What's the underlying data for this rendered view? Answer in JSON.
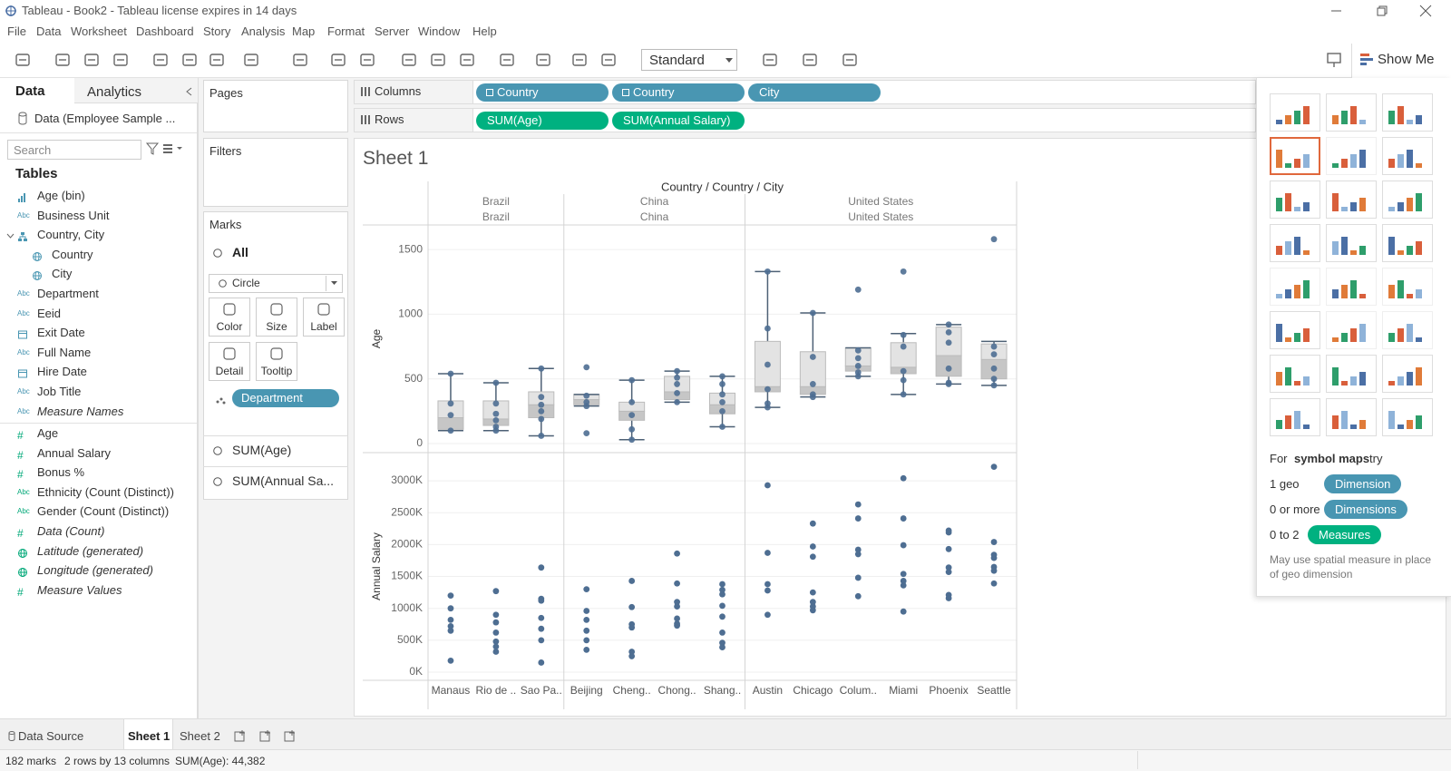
{
  "window": {
    "title": "Tableau - Book2 - Tableau license expires in 14 days"
  },
  "menu": [
    "File",
    "Data",
    "Worksheet",
    "Dashboard",
    "Story",
    "Analysis",
    "Map",
    "Format",
    "Server",
    "Window",
    "Help"
  ],
  "toolbar": {
    "fit": "Standard",
    "show_me": "Show Me"
  },
  "data_pane": {
    "tabs": [
      "Data",
      "Analytics"
    ],
    "source": "Data (Employee Sample ...",
    "search": "Search",
    "tables_title": "Tables",
    "dimensions": [
      {
        "name": "Age (bin)",
        "glyph": "bin"
      },
      {
        "name": "Business Unit",
        "icon": "Abc"
      },
      {
        "name": "Country, City",
        "glyph": "hierarchy",
        "children": [
          {
            "name": "Country",
            "glyph": "geo"
          },
          {
            "name": "City",
            "glyph": "geo"
          }
        ]
      },
      {
        "name": "Department",
        "icon": "Abc"
      },
      {
        "name": "Eeid",
        "icon": "Abc"
      },
      {
        "name": "Exit Date",
        "glyph": "date"
      },
      {
        "name": "Full Name",
        "icon": "Abc"
      },
      {
        "name": "Hire Date",
        "glyph": "date"
      },
      {
        "name": "Job Title",
        "icon": "Abc"
      },
      {
        "name": "Measure Names",
        "icon": "Abc",
        "italic": true
      }
    ],
    "measures": [
      {
        "name": "Age",
        "icon": "#"
      },
      {
        "name": "Annual Salary",
        "icon": "#"
      },
      {
        "name": "Bonus %",
        "icon": "#"
      },
      {
        "name": "Ethnicity (Count (Distinct))",
        "icon": "Abc"
      },
      {
        "name": "Gender (Count (Distinct))",
        "icon": "Abc"
      },
      {
        "name": "Data (Count)",
        "icon": "#",
        "italic": true
      },
      {
        "name": "Latitude (generated)",
        "glyph": "geo",
        "italic": true
      },
      {
        "name": "Longitude (generated)",
        "glyph": "geo",
        "italic": true
      },
      {
        "name": "Measure Values",
        "icon": "#",
        "italic": true
      }
    ]
  },
  "cards": {
    "pages": "Pages",
    "filters": "Filters"
  },
  "marks": {
    "title": "Marks",
    "all": "All",
    "mark_type": "Circle",
    "buttons": [
      "Color",
      "Size",
      "Label",
      "Detail",
      "Tooltip"
    ],
    "pill": "Department",
    "measures": [
      "SUM(Age)",
      "SUM(Annual Sa..."
    ]
  },
  "shelves": {
    "columns_label": "Columns",
    "columns": [
      "Country",
      "Country",
      "City"
    ],
    "rows_label": "Rows",
    "rows": [
      "SUM(Age)",
      "SUM(Annual Salary)"
    ]
  },
  "sheet_title": "Sheet 1",
  "chart_data": {
    "type": "box-scatter",
    "header": "Country / Country / City",
    "grid": true,
    "point_color": "#4e6e92",
    "age_axis": {
      "label": "Age",
      "ylim": [
        -70,
        1690
      ],
      "yticks": [
        0,
        500,
        1000,
        1500
      ]
    },
    "salary_axis": {
      "label": "Annual Salary",
      "ylim": [
        -128000,
        3442000
      ],
      "yticks": [
        {
          "value": 0,
          "label": "0K"
        },
        {
          "value": 500000,
          "label": "500K"
        },
        {
          "value": 1000000,
          "label": "1000K"
        },
        {
          "value": 1500000,
          "label": "1500K"
        },
        {
          "value": 2000000,
          "label": "2000K"
        },
        {
          "value": 2500000,
          "label": "2500K"
        },
        {
          "value": 3000000,
          "label": "3000K"
        }
      ]
    },
    "panes": [
      {
        "country": "Brazil",
        "country_level2": "Brazil",
        "cities": [
          "Manaus",
          "Rio de ..",
          "Sao Pa.."
        ],
        "age": [
          [
            540,
            310,
            220,
            100
          ],
          [
            470,
            310,
            230,
            180,
            130,
            100
          ],
          [
            580,
            360,
            300,
            250,
            190,
            60
          ]
        ],
        "age_box": [
          [
            100,
            110,
            200,
            330,
            540
          ],
          [
            100,
            140,
            190,
            330,
            470
          ],
          [
            60,
            200,
            300,
            400,
            580
          ]
        ],
        "salary": [
          [
            1200000,
            1000000,
            820000,
            720000,
            650000,
            180000
          ],
          [
            1270000,
            900000,
            780000,
            620000,
            480000,
            400000,
            320000
          ],
          [
            1640000,
            1150000,
            1120000,
            850000,
            680000,
            500000,
            150000
          ]
        ]
      },
      {
        "country": "China",
        "country_level2": "China",
        "cities": [
          "Beijing",
          "Cheng..",
          "Chong..",
          "Shang.."
        ],
        "age": [
          [
            590,
            370,
            320,
            290,
            80
          ],
          [
            490,
            320,
            220,
            110,
            30
          ],
          [
            560,
            510,
            460,
            390,
            320
          ],
          [
            520,
            460,
            380,
            320,
            250,
            130
          ]
        ],
        "age_box": [
          [
            290,
            300,
            340,
            380,
            380
          ],
          [
            30,
            180,
            250,
            320,
            490
          ],
          [
            320,
            340,
            400,
            520,
            560
          ],
          [
            130,
            230,
            300,
            390,
            520
          ]
        ],
        "salary": [
          [
            1300000,
            960000,
            820000,
            650000,
            500000,
            350000
          ],
          [
            1430000,
            1020000,
            750000,
            700000,
            320000,
            250000
          ],
          [
            1860000,
            1390000,
            1100000,
            1030000,
            840000,
            760000,
            730000
          ],
          [
            1380000,
            1290000,
            1220000,
            1040000,
            870000,
            620000,
            460000,
            390000
          ]
        ]
      },
      {
        "country": "United States",
        "country_level2": "United States",
        "cities": [
          "Austin",
          "Chicago",
          "Colum..",
          "Miami",
          "Phoenix",
          "Seattle"
        ],
        "age": [
          [
            1330,
            890,
            610,
            420,
            310,
            280
          ],
          [
            1010,
            670,
            460,
            380,
            360
          ],
          [
            1190,
            720,
            660,
            600,
            550,
            520
          ],
          [
            1330,
            840,
            750,
            560,
            490,
            380
          ],
          [
            920,
            860,
            780,
            580,
            470,
            460
          ],
          [
            1580,
            750,
            690,
            580,
            500,
            450
          ]
        ],
        "age_box": [
          [
            280,
            400,
            440,
            790,
            1330
          ],
          [
            360,
            380,
            440,
            710,
            1010
          ],
          [
            520,
            560,
            600,
            740,
            740
          ],
          [
            380,
            540,
            590,
            780,
            850
          ],
          [
            460,
            520,
            680,
            900,
            920
          ],
          [
            450,
            500,
            650,
            770,
            790
          ]
        ],
        "salary": [
          [
            2930000,
            1870000,
            1380000,
            1280000,
            900000
          ],
          [
            2330000,
            1970000,
            1810000,
            1250000,
            1100000,
            1030000,
            970000
          ],
          [
            2630000,
            2410000,
            1920000,
            1850000,
            1480000,
            1190000
          ],
          [
            3040000,
            2410000,
            1990000,
            1540000,
            1430000,
            1360000,
            950000
          ],
          [
            2220000,
            2190000,
            1930000,
            1640000,
            1570000,
            1210000,
            1160000
          ],
          [
            3220000,
            2040000,
            1840000,
            1790000,
            1650000,
            1590000,
            1390000
          ]
        ]
      }
    ]
  },
  "show_me": {
    "hint_prefix": "For",
    "hint_bold": "symbol maps",
    "hint_suffix": "try",
    "requirements": [
      {
        "label": "1 geo",
        "pill": "Dimension"
      },
      {
        "label": "0 or more",
        "pill": "Dimensions"
      },
      {
        "label": "0 to 2",
        "pill": "Measures"
      }
    ],
    "note": "May use spatial measure in place of geo dimension"
  },
  "sheet_tabs": [
    "Data Source",
    "Sheet 1",
    "Sheet 2"
  ],
  "status": [
    "182 marks",
    "2 rows by 13 columns",
    "SUM(Age): 44,382"
  ]
}
